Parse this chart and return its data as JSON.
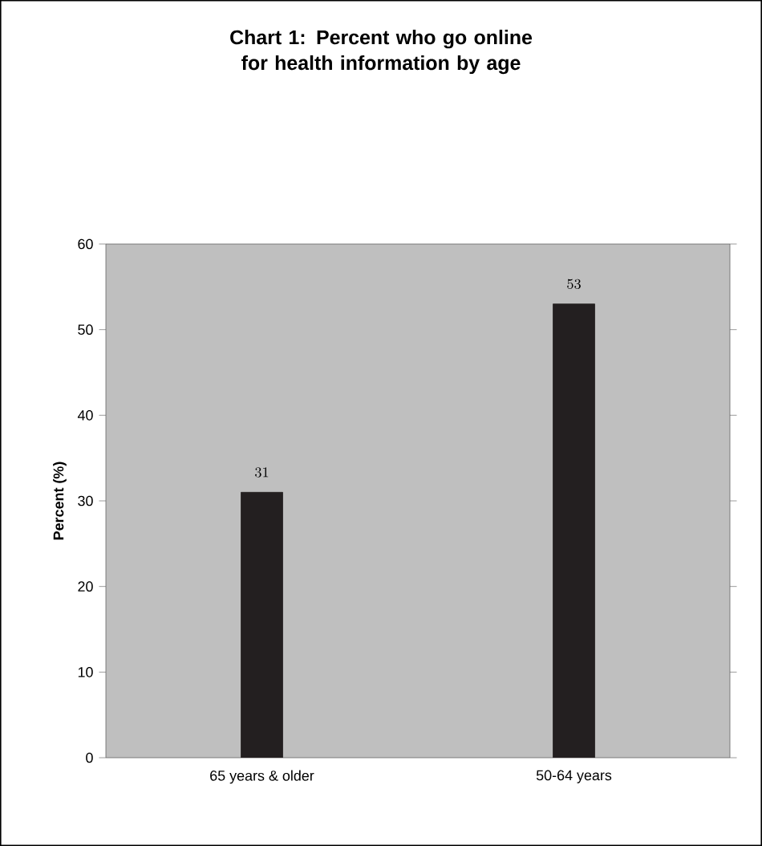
{
  "chart_data": {
    "type": "bar",
    "title": "Chart 1: Percent who go online for health information by age",
    "ylabel": "Percent (%)",
    "categories": [
      "65 years & older",
      "50-64 years"
    ],
    "values": [
      31,
      53
    ],
    "color": "#231f20",
    "ylim": [
      0,
      60
    ],
    "yticks": [
      0,
      10,
      20,
      30,
      40,
      50,
      60
    ],
    "data_labels": true
  }
}
